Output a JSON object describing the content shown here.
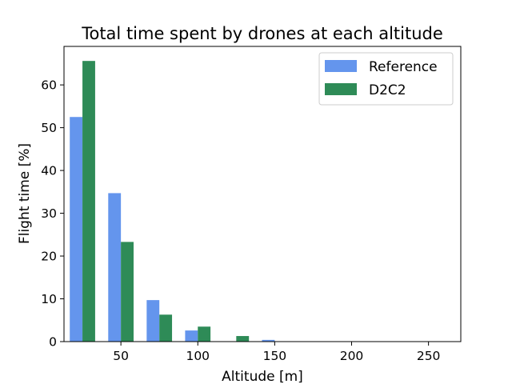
{
  "chart_data": {
    "type": "bar",
    "title": "Total time spent by drones at each altitude",
    "xlabel": "Altitude [m]",
    "ylabel": "Flight time [%]",
    "bin_centers": [
      25,
      50,
      75,
      100,
      125,
      150,
      175,
      200,
      225,
      250
    ],
    "series": [
      {
        "name": "Reference",
        "color": "#6495ED",
        "values": [
          52.5,
          34.7,
          9.7,
          2.6,
          0.0,
          0.4,
          0,
          0,
          0,
          0
        ]
      },
      {
        "name": "D2C2",
        "color": "#2E8B57",
        "values": [
          65.6,
          23.3,
          6.3,
          3.5,
          1.3,
          0.0,
          0,
          0,
          0,
          0
        ]
      }
    ],
    "xlim": [
      13,
      271
    ],
    "ylim": [
      0,
      69
    ],
    "xticks": [
      50,
      100,
      150,
      200,
      250
    ],
    "yticks": [
      0,
      10,
      20,
      30,
      40,
      50,
      60
    ],
    "grid": false,
    "legend_position": "top-right"
  }
}
